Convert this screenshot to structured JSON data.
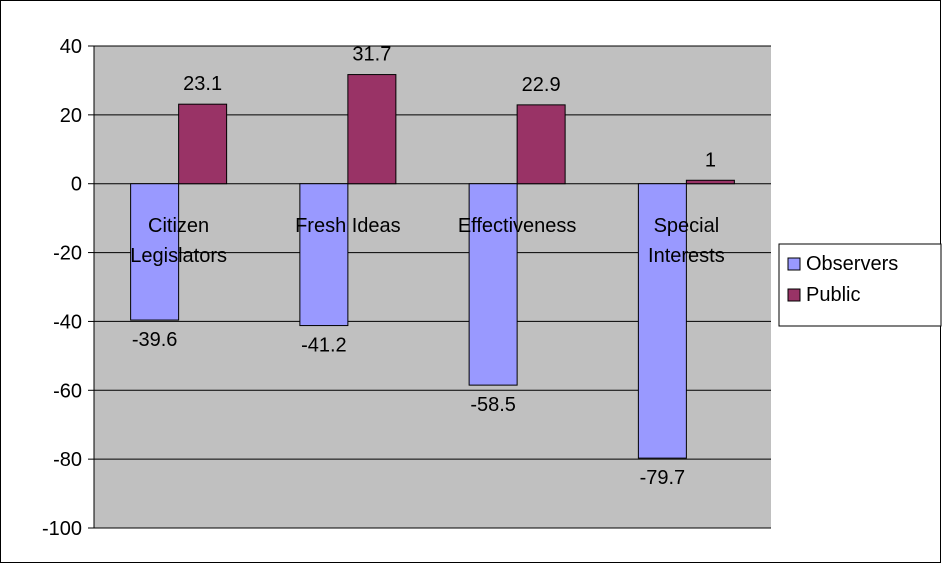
{
  "chart_data": {
    "type": "bar",
    "categories": [
      [
        "Citizen",
        "Legislators"
      ],
      [
        "Fresh Ideas"
      ],
      [
        "Effectiveness"
      ],
      [
        "Special",
        "Interests"
      ]
    ],
    "series": [
      {
        "name": "Observers",
        "values": [
          -39.6,
          -41.2,
          -58.5,
          -79.7
        ],
        "color": "#9999ff"
      },
      {
        "name": "Public",
        "values": [
          23.1,
          31.7,
          22.9,
          1
        ],
        "color": "#993366"
      }
    ],
    "ylim": [
      -100,
      40
    ],
    "yticks": [
      40,
      20,
      0,
      -20,
      -40,
      -60,
      -80,
      -100
    ],
    "grid": true,
    "legend": "right",
    "plot_background": "#c0c0c0",
    "title": "",
    "xlabel": "",
    "ylabel": ""
  }
}
